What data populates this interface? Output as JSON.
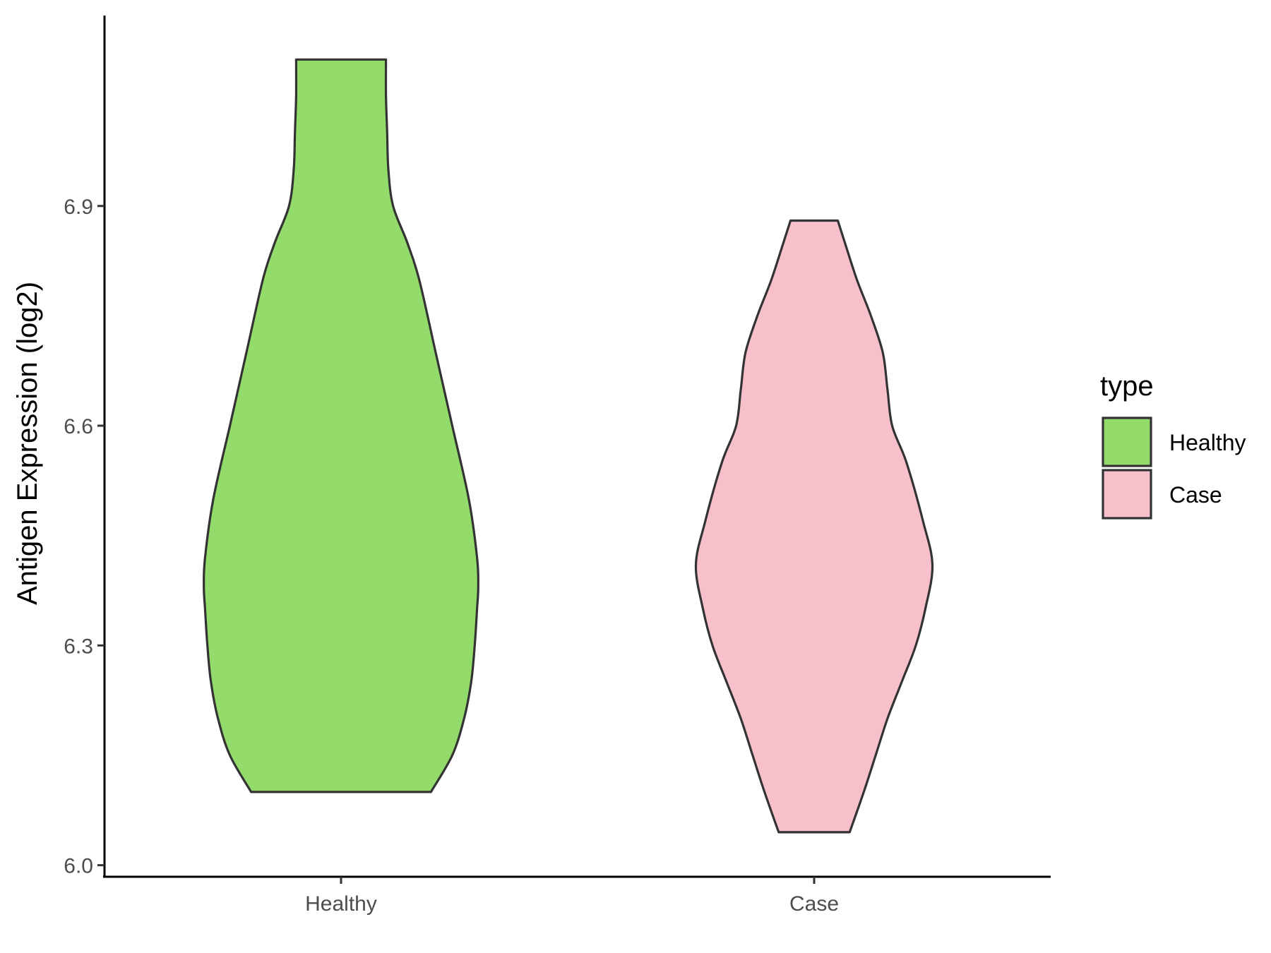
{
  "chart_data": {
    "type": "violin",
    "ylabel": "Antigen Expression (log2)",
    "xlabel": "",
    "ylim": [
      5.99,
      7.16
    ],
    "y_ticks": [
      6.0,
      6.3,
      6.6,
      6.9
    ],
    "categories": [
      "Healthy",
      "Case"
    ],
    "legend": {
      "title": "type",
      "position": "right",
      "items": [
        {
          "label": "Healthy",
          "color": "#93dc6b"
        },
        {
          "label": "Case",
          "color": "#f7c0cb"
        }
      ]
    },
    "series": [
      {
        "name": "Healthy",
        "color": "#93dc6b",
        "y_min": 6.1,
        "y_max": 7.1,
        "density": [
          [
            6.1,
            0.38
          ],
          [
            6.15,
            0.47
          ],
          [
            6.2,
            0.52
          ],
          [
            6.25,
            0.55
          ],
          [
            6.3,
            0.565
          ],
          [
            6.35,
            0.575
          ],
          [
            6.38,
            0.58
          ],
          [
            6.42,
            0.575
          ],
          [
            6.5,
            0.54
          ],
          [
            6.6,
            0.47
          ],
          [
            6.7,
            0.4
          ],
          [
            6.8,
            0.33
          ],
          [
            6.85,
            0.28
          ],
          [
            6.9,
            0.22
          ],
          [
            6.95,
            0.2
          ],
          [
            7.0,
            0.195
          ],
          [
            7.05,
            0.19
          ],
          [
            7.1,
            0.19
          ]
        ]
      },
      {
        "name": "Case",
        "color": "#f7c0cb",
        "y_min": 6.045,
        "y_max": 6.88,
        "density": [
          [
            6.045,
            0.15
          ],
          [
            6.1,
            0.21
          ],
          [
            6.15,
            0.26
          ],
          [
            6.2,
            0.31
          ],
          [
            6.25,
            0.37
          ],
          [
            6.3,
            0.43
          ],
          [
            6.35,
            0.47
          ],
          [
            6.41,
            0.5
          ],
          [
            6.47,
            0.46
          ],
          [
            6.55,
            0.39
          ],
          [
            6.6,
            0.33
          ],
          [
            6.65,
            0.31
          ],
          [
            6.7,
            0.29
          ],
          [
            6.75,
            0.24
          ],
          [
            6.8,
            0.18
          ],
          [
            6.85,
            0.13
          ],
          [
            6.88,
            0.1
          ]
        ]
      }
    ]
  }
}
